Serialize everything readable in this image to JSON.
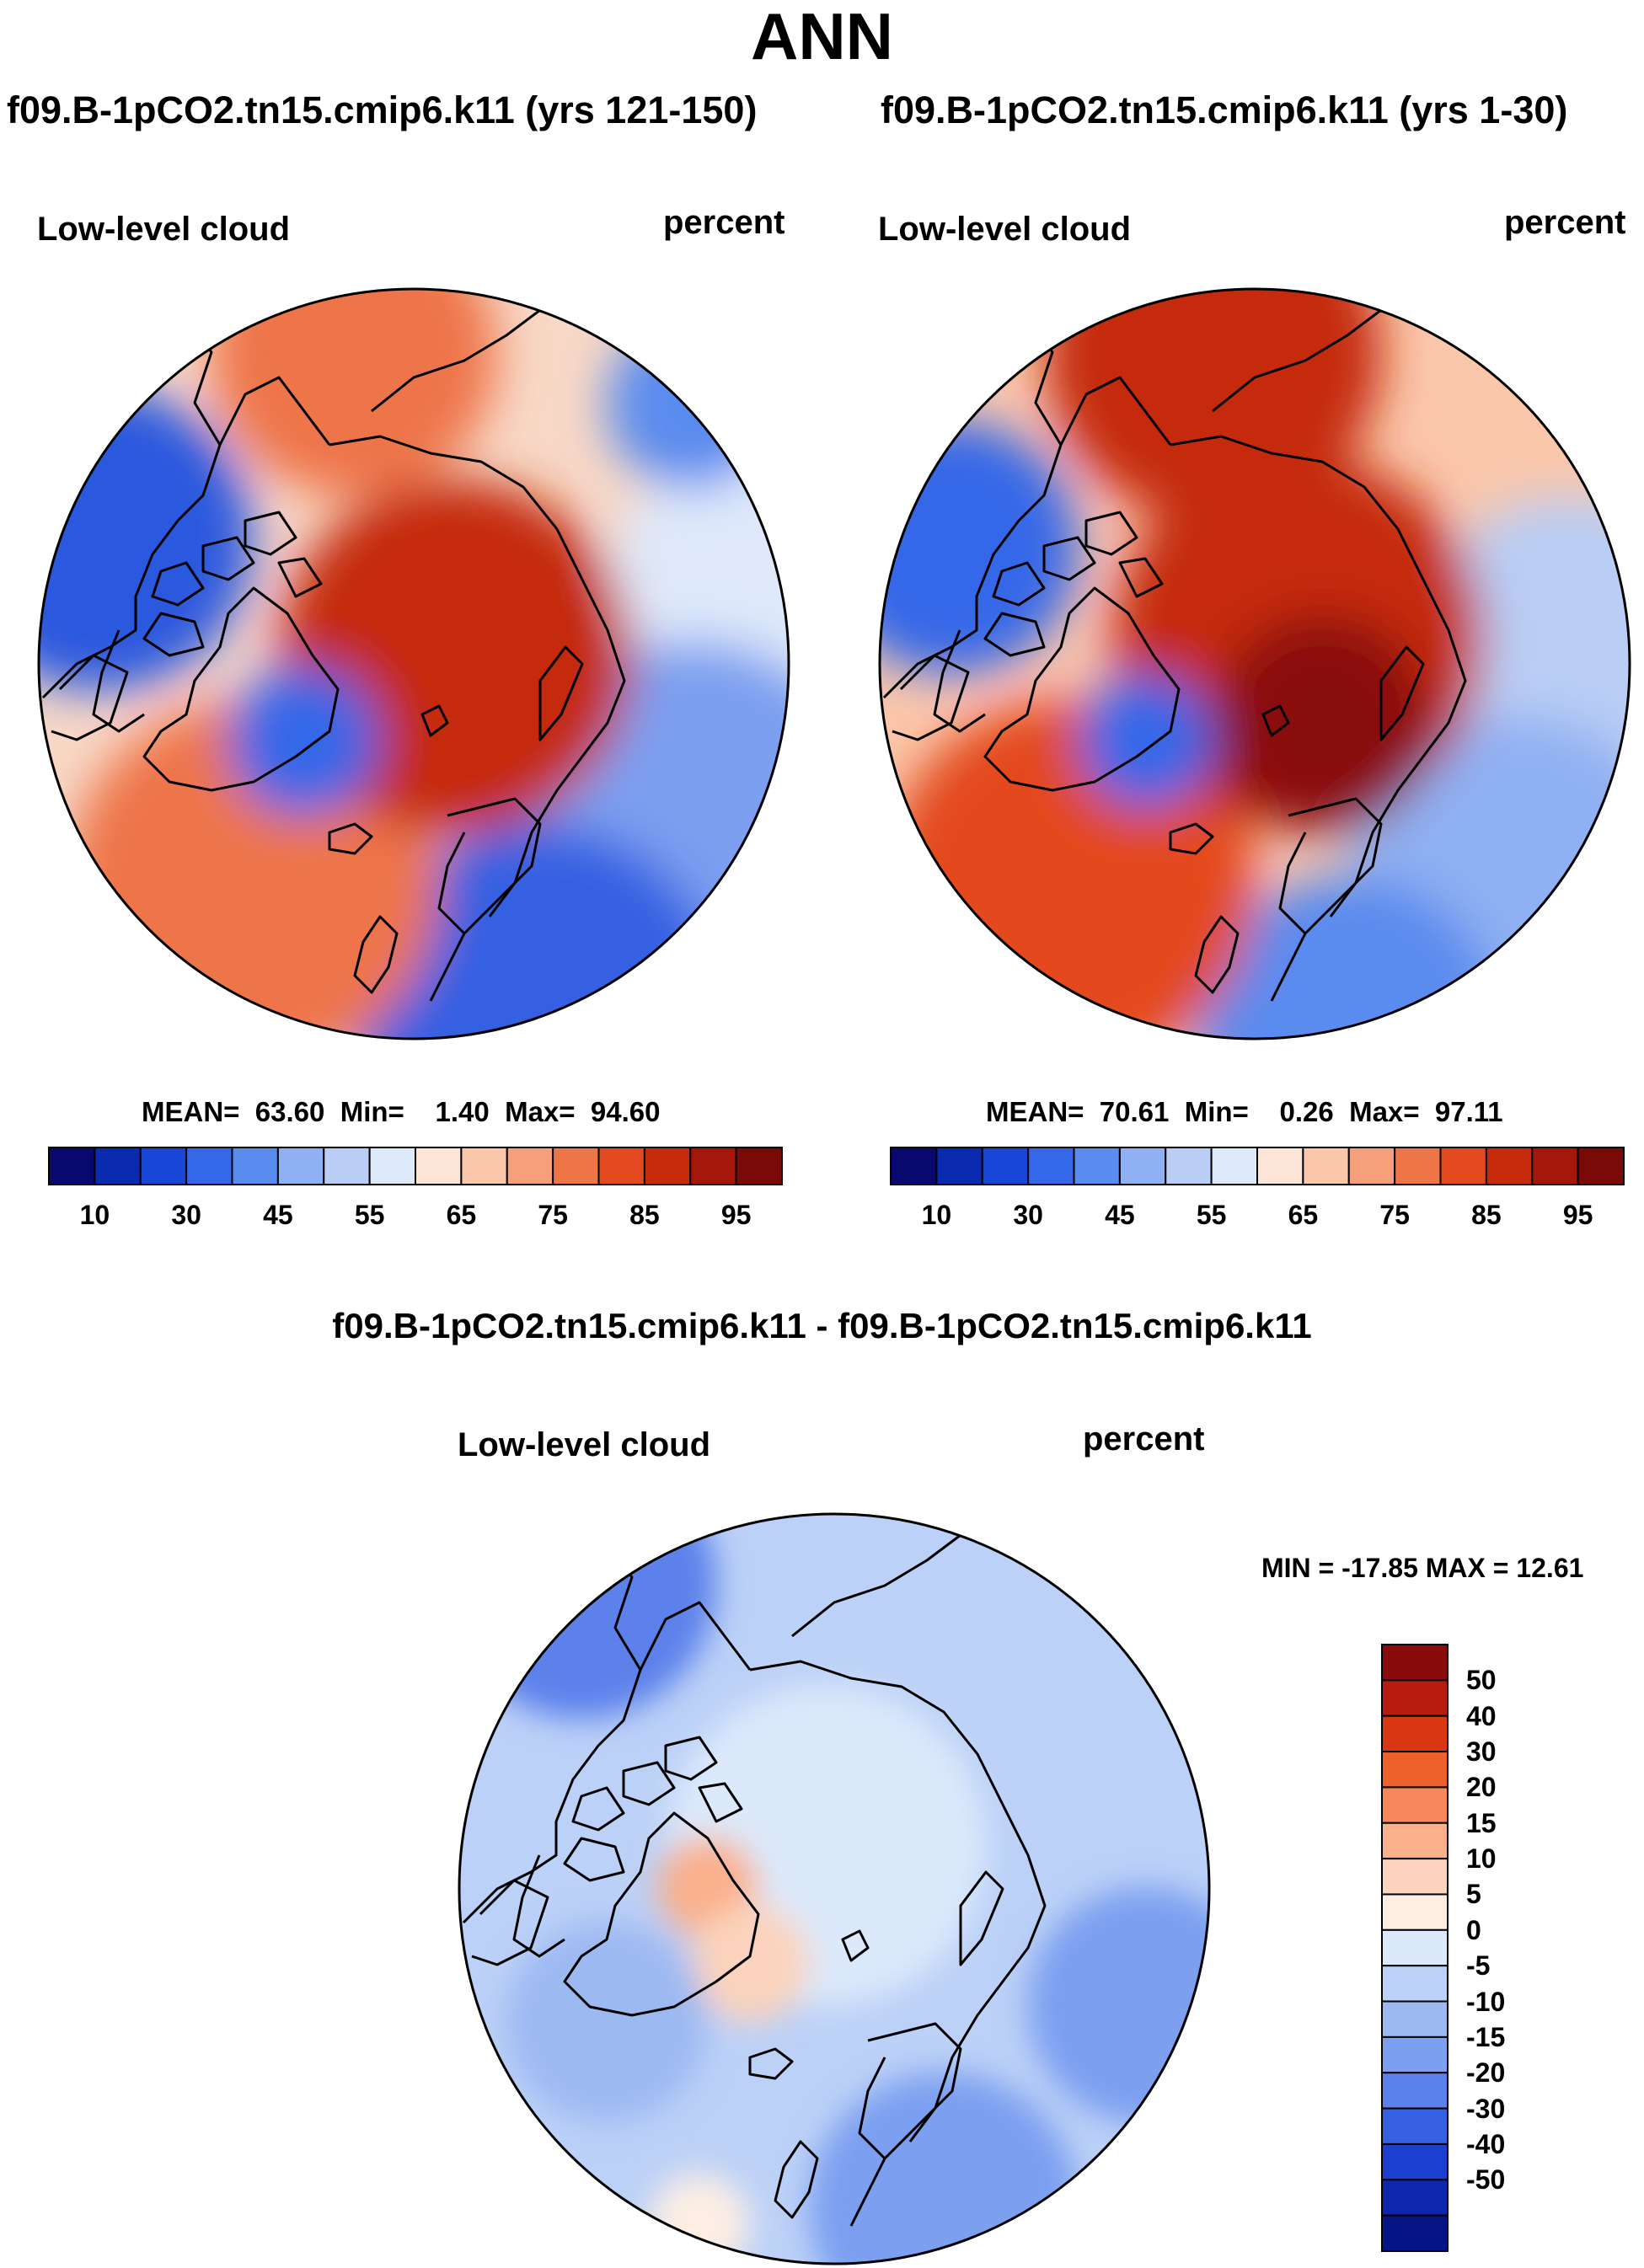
{
  "title": "ANN",
  "panels": [
    {
      "case_title": "f09.B-1pCO2.tn15.cmip6.k11 (yrs 121-150)",
      "variable": "Low-level cloud",
      "units": "percent",
      "stats": {
        "mean_label": "MEAN=",
        "mean": "63.60",
        "min_label": "Min=",
        "min": "1.40",
        "max_label": "Max=",
        "max": "94.60"
      }
    },
    {
      "case_title": "f09.B-1pCO2.tn15.cmip6.k11 (yrs 1-30)",
      "variable": "Low-level cloud",
      "units": "percent",
      "stats": {
        "mean_label": "MEAN=",
        "mean": "70.61",
        "min_label": "Min=",
        "min": "0.26",
        "max_label": "Max=",
        "max": "97.11"
      }
    }
  ],
  "diff_panel": {
    "case_title": "f09.B-1pCO2.tn15.cmip6.k11 - f09.B-1pCO2.tn15.cmip6.k11",
    "variable": "Low-level cloud",
    "units": "percent",
    "stats": "MIN = -17.85 MAX =  12.61"
  },
  "colorbar_h": {
    "colors": [
      "#08086e",
      "#0a2bb0",
      "#1846d6",
      "#3568e8",
      "#5a8bee",
      "#8fb0f2",
      "#b9cdf5",
      "#dee9fa",
      "#fde6d8",
      "#fbc7ab",
      "#f5a07a",
      "#ee7548",
      "#e34a1f",
      "#c52a0a",
      "#a5160b",
      "#7a0a08"
    ],
    "tick_labels": [
      "10",
      "30",
      "45",
      "55",
      "65",
      "75",
      "85",
      "95"
    ]
  },
  "colorbar_v": {
    "colors": [
      "#8a0b0b",
      "#b51c0b",
      "#d93614",
      "#f0602a",
      "#f5875a",
      "#f9b08b",
      "#fcd3bc",
      "#fdeee4",
      "#dce9fb",
      "#bcd1f7",
      "#9db9f2",
      "#7c9ff0",
      "#5b81ea",
      "#3560e2",
      "#1c3fd0",
      "#0e26ad",
      "#061585"
    ],
    "tick_labels": [
      "50",
      "40",
      "30",
      "20",
      "15",
      "10",
      "5",
      "0",
      "-5",
      "-10",
      "-15",
      "-20",
      "-30",
      "-40",
      "-50"
    ]
  }
}
